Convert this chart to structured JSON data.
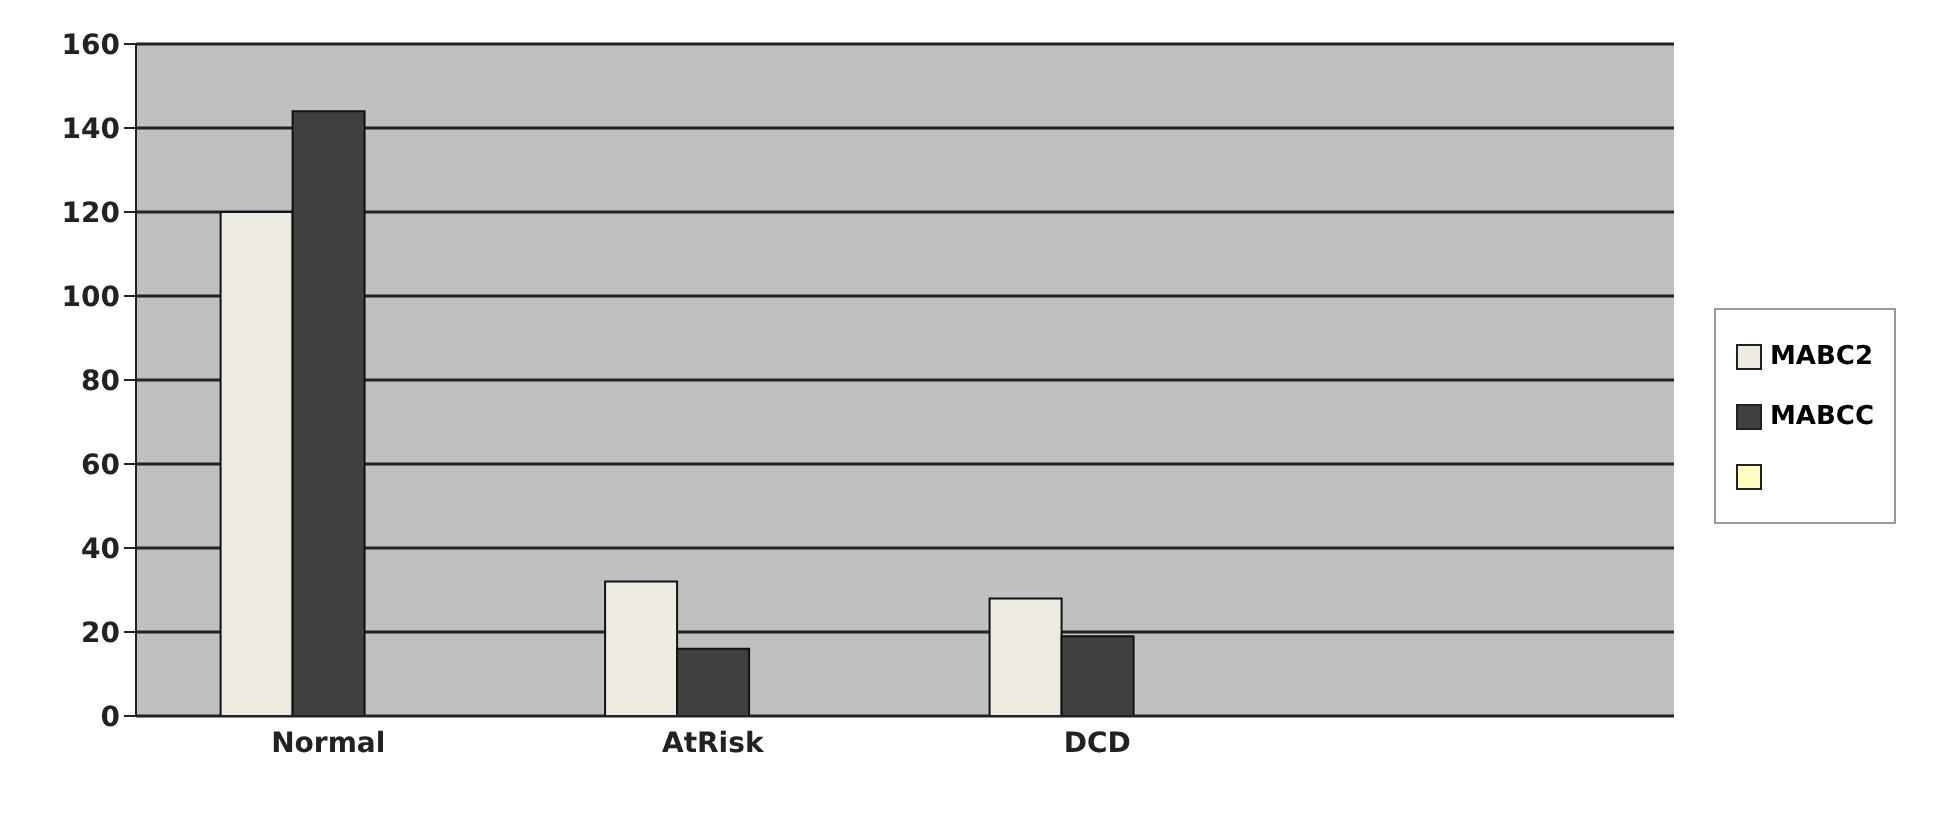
{
  "chart_data": {
    "type": "bar",
    "categories": [
      "Normal",
      "AtRisk",
      "DCD",
      null
    ],
    "series": [
      {
        "name": "MABC2",
        "color": "#eeebe0",
        "values": [
          120,
          32,
          28,
          null
        ]
      },
      {
        "name": "MABCC",
        "color": "#404040",
        "values": [
          144,
          16,
          19,
          null
        ]
      },
      {
        "color": "#ffffc0",
        "values": [
          null,
          null,
          null,
          null
        ]
      }
    ],
    "ylim": [
      0,
      160
    ],
    "yticks": [
      0,
      20,
      40,
      60,
      80,
      100,
      120,
      140,
      160
    ],
    "grid": "y",
    "legend": "right"
  }
}
